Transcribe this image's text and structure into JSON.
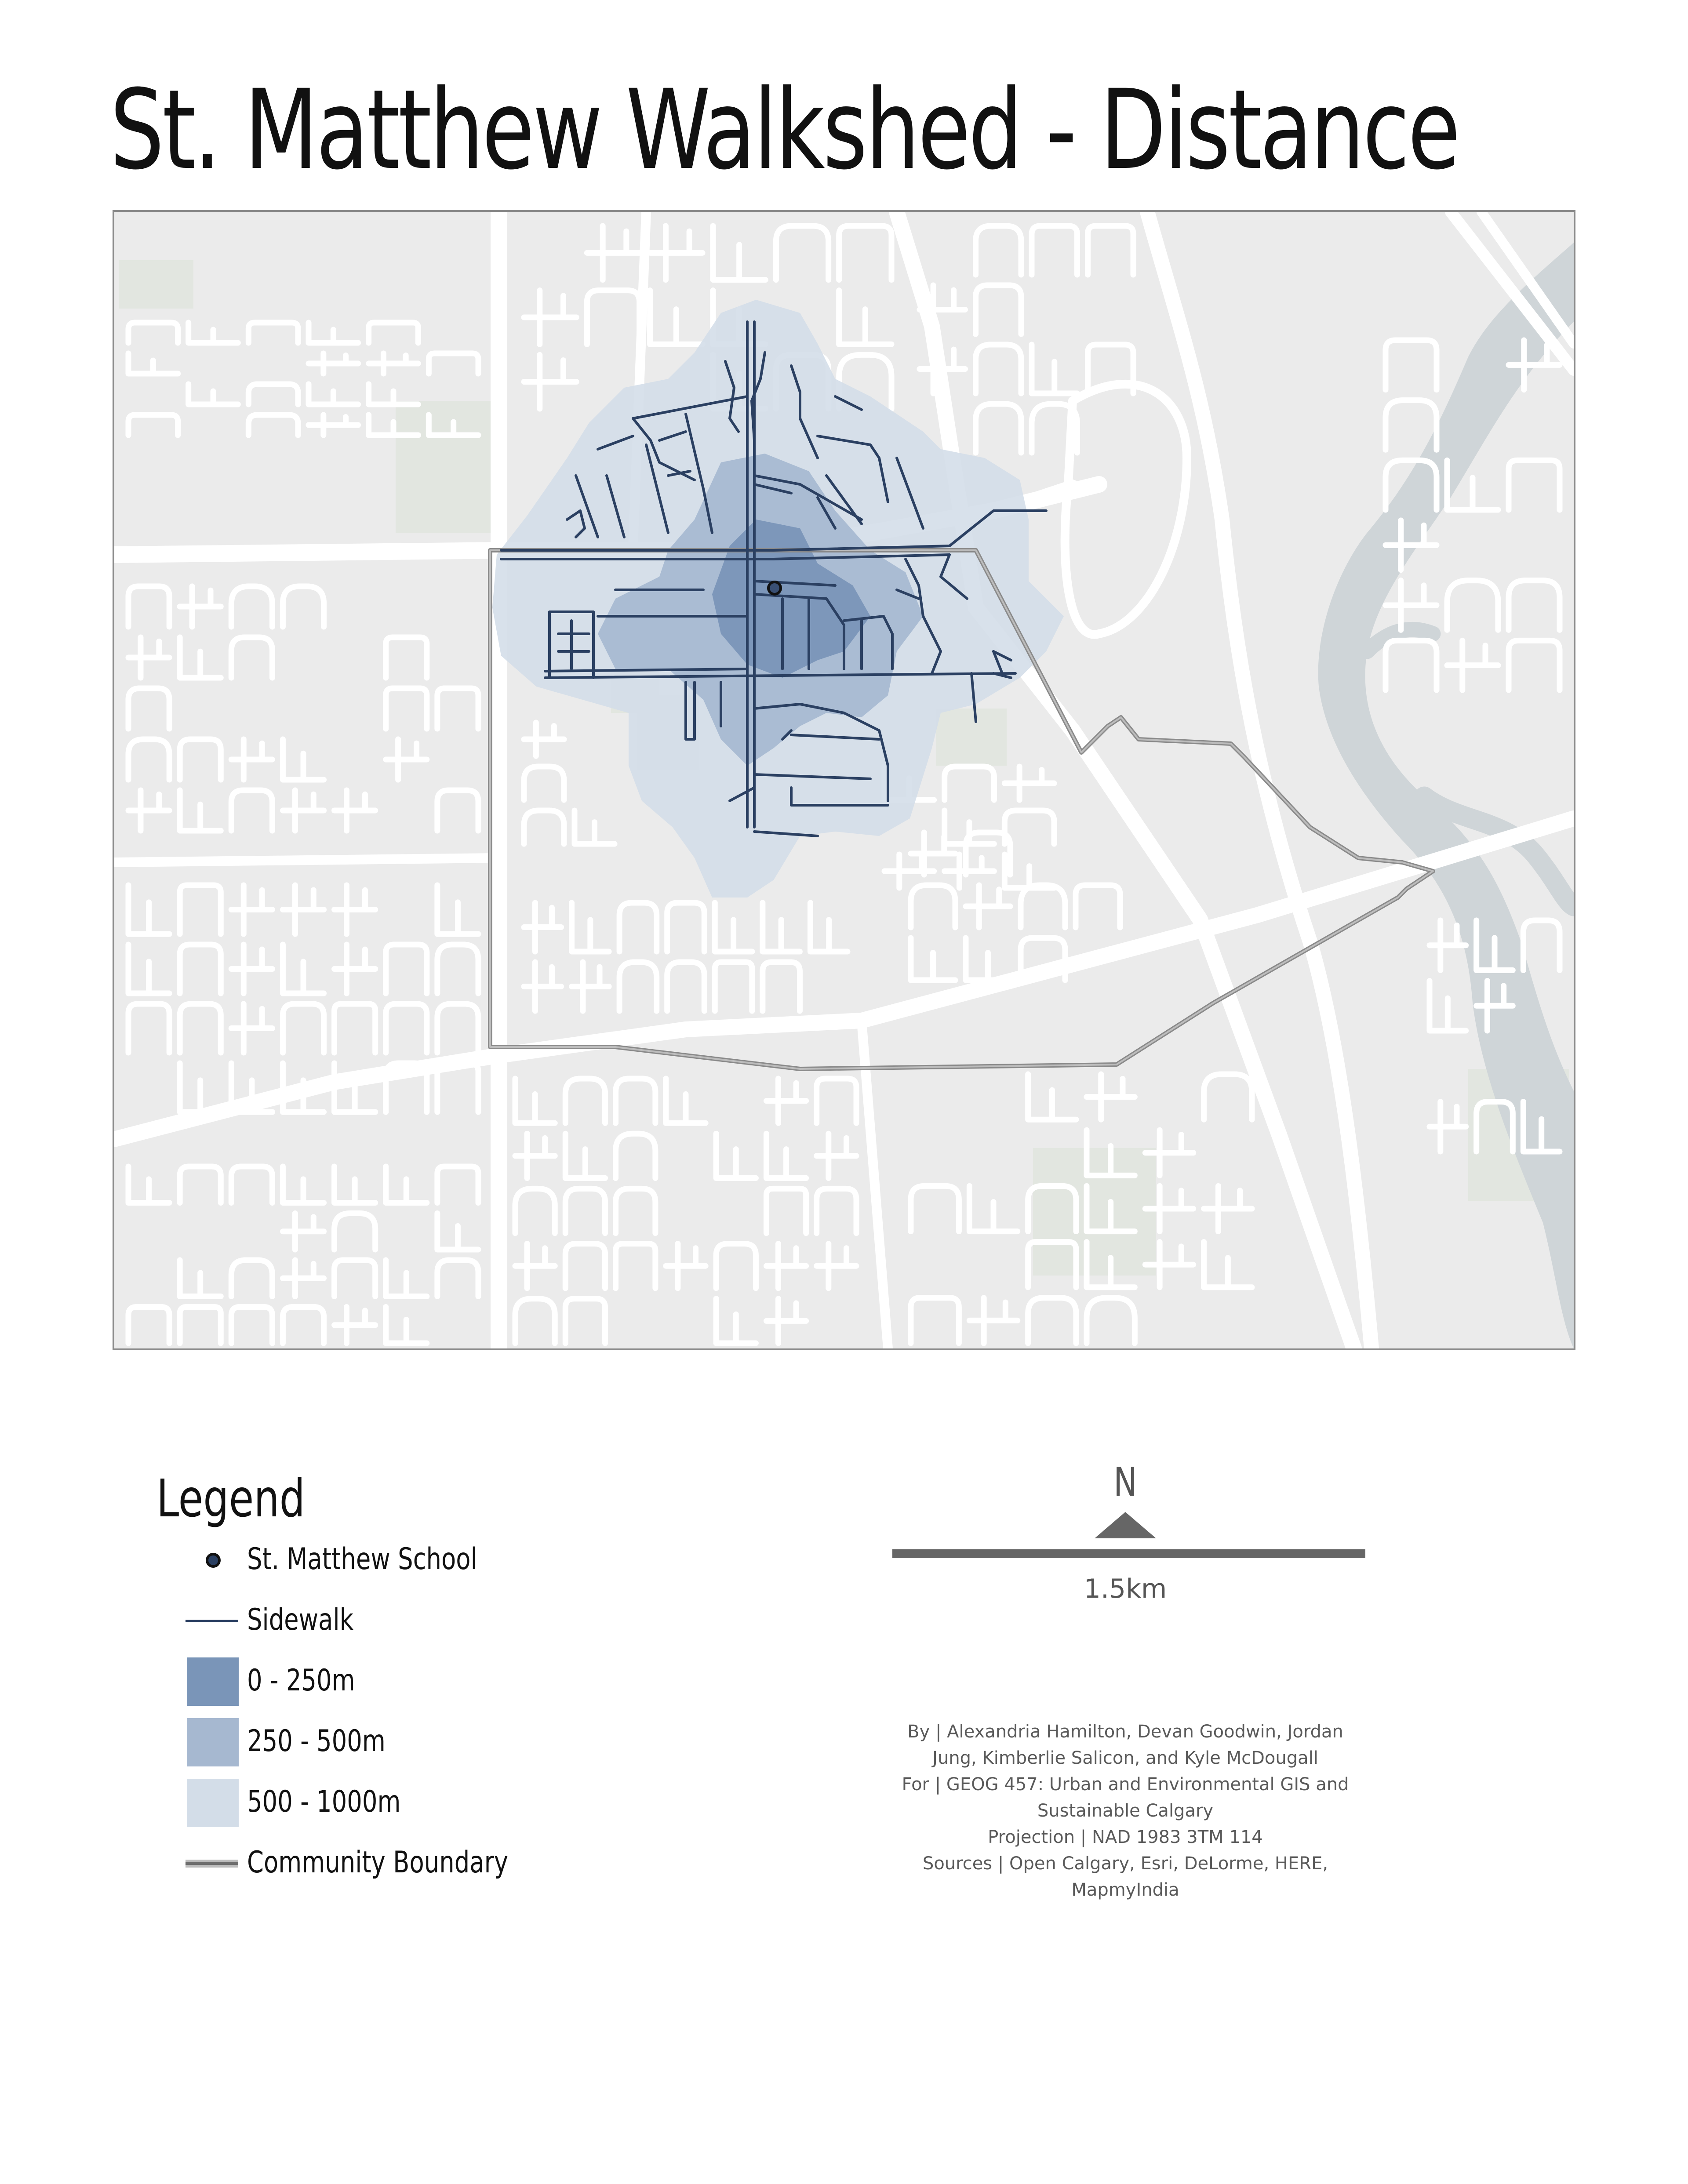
{
  "title": "St. Matthew Walkshed - Distance",
  "map": {
    "colors": {
      "background": "#ebebeb",
      "road": "#ffffff",
      "park": "#e2e6e0",
      "water": "#cfd5d8",
      "sidewalk": "#2b4062",
      "zone_0_250": "#7a95b8",
      "zone_250_500": "#a6b8d0",
      "zone_500_1000": "#d3dde8",
      "boundary": "#777777"
    }
  },
  "legend": {
    "title": "Legend",
    "items": [
      {
        "id": "school",
        "label": "St. Matthew School",
        "symbol": "point",
        "color": "#2b4062"
      },
      {
        "id": "sidewalk",
        "label": "Sidewalk",
        "symbol": "line",
        "color": "#2b4062"
      },
      {
        "id": "zone1",
        "label": "0 - 250m",
        "symbol": "fill",
        "color": "#7a95b8"
      },
      {
        "id": "zone2",
        "label": "250 - 500m",
        "symbol": "fill",
        "color": "#a6b8d0"
      },
      {
        "id": "zone3",
        "label": "500 - 1000m",
        "symbol": "fill",
        "color": "#d3dde8"
      },
      {
        "id": "boundary",
        "label": "Community Boundary",
        "symbol": "boundary",
        "color": "#777777"
      }
    ]
  },
  "north_arrow": {
    "label": "N"
  },
  "scale_bar": {
    "label": "1.5km"
  },
  "credits": [
    "By | Alexandria Hamilton, Devan Goodwin, Jordan",
    "Jung, Kimberlie Salicon, and Kyle McDougall",
    "For | GEOG 457: Urban and Environmental GIS and",
    "Sustainable Calgary",
    "Projection | NAD 1983 3TM 114",
    "Sources | Open Calgary, Esri, DeLorme, HERE,",
    "MapmyIndia"
  ]
}
